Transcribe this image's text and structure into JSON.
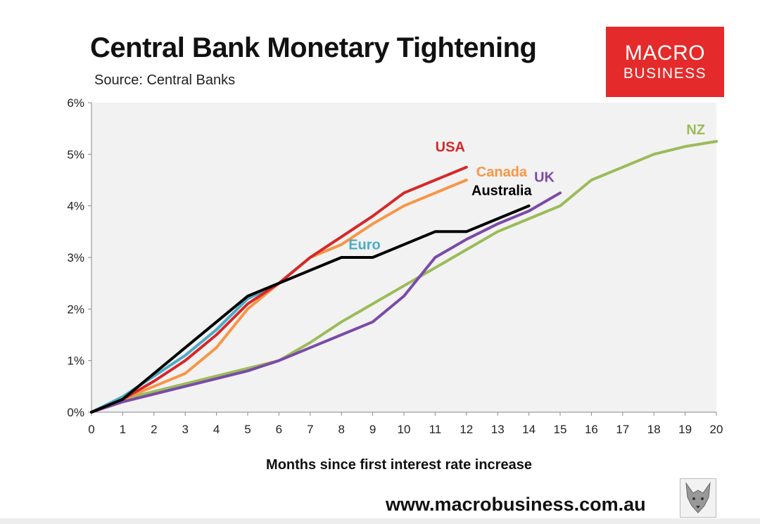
{
  "header": {
    "title": "Central Bank Monetary Tightening",
    "subtitle": "Source: Central Banks"
  },
  "logo": {
    "line1": "MACRO",
    "line2": "BUSINESS",
    "color": "#e42a2a"
  },
  "footer": {
    "website": "www.macrobusiness.com.au",
    "icon": "wolf-icon"
  },
  "chart_data": {
    "type": "line",
    "title": "Central Bank Monetary Tightening",
    "xlabel": "Months since first interest rate increase",
    "ylabel": "",
    "xlim": [
      0,
      20
    ],
    "ylim": [
      0,
      6
    ],
    "grid": false,
    "x_ticks": [
      "0",
      "1",
      "2",
      "3",
      "4",
      "5",
      "6",
      "7",
      "8",
      "9",
      "10",
      "11",
      "12",
      "13",
      "14",
      "15",
      "16",
      "17",
      "18",
      "19",
      "20"
    ],
    "y_ticks": [
      "0%",
      "1%",
      "2%",
      "3%",
      "4%",
      "5%",
      "6%"
    ],
    "series": [
      {
        "name": "NZ",
        "color": "#9bbb59",
        "x": [
          0,
          1,
          2,
          3,
          4,
          5,
          6,
          7,
          8,
          9,
          10,
          11,
          12,
          13,
          14,
          15,
          16,
          17,
          18,
          19,
          20
        ],
        "y": [
          0,
          0.25,
          0.4,
          0.55,
          0.7,
          0.85,
          1.0,
          1.35,
          1.75,
          2.1,
          2.45,
          2.8,
          3.15,
          3.5,
          3.75,
          4.0,
          4.5,
          4.75,
          5.0,
          5.15,
          5.25
        ]
      },
      {
        "name": "UK",
        "color": "#7a4aa8",
        "x": [
          0,
          1,
          2,
          3,
          4,
          5,
          6,
          7,
          8,
          9,
          10,
          11,
          12,
          13,
          14,
          15
        ],
        "y": [
          0,
          0.2,
          0.35,
          0.5,
          0.65,
          0.8,
          1.0,
          1.25,
          1.5,
          1.75,
          2.25,
          3.0,
          3.35,
          3.65,
          3.9,
          4.25
        ]
      },
      {
        "name": "Euro",
        "color": "#4bacc6",
        "x": [
          0,
          1,
          2,
          3,
          4,
          5,
          6,
          7,
          8
        ],
        "y": [
          0,
          0.3,
          0.7,
          1.1,
          1.6,
          2.2,
          2.5,
          3.0,
          3.25
        ]
      },
      {
        "name": "Canada",
        "color": "#f79646",
        "x": [
          0,
          1,
          2,
          3,
          4,
          5,
          6,
          7,
          8,
          9,
          10,
          11,
          12
        ],
        "y": [
          0,
          0.25,
          0.5,
          0.75,
          1.25,
          2.0,
          2.5,
          3.0,
          3.25,
          3.65,
          4.0,
          4.25,
          4.5
        ]
      },
      {
        "name": "USA",
        "color": "#d62728",
        "x": [
          0,
          1,
          2,
          3,
          4,
          5,
          6,
          7,
          8,
          9,
          10,
          11,
          12
        ],
        "y": [
          0,
          0.25,
          0.6,
          1.0,
          1.5,
          2.1,
          2.5,
          3.0,
          3.4,
          3.8,
          4.25,
          4.5,
          4.75
        ]
      },
      {
        "name": "Australia",
        "color": "#000000",
        "x": [
          0,
          1,
          2,
          3,
          4,
          5,
          6,
          7,
          8,
          9,
          10,
          11,
          12,
          13,
          14
        ],
        "y": [
          0,
          0.25,
          0.75,
          1.25,
          1.75,
          2.25,
          2.5,
          2.75,
          3.0,
          3.0,
          3.25,
          3.5,
          3.5,
          3.75,
          4.0
        ]
      }
    ],
    "annotations": [
      {
        "text": "NZ",
        "series": "NZ",
        "x": 20,
        "y": 5.25
      },
      {
        "text": "UK",
        "series": "UK",
        "x": 15,
        "y": 4.25
      },
      {
        "text": "Euro",
        "series": "Euro",
        "x": 8,
        "y": 3.25
      },
      {
        "text": "Canada",
        "series": "Canada",
        "x": 12,
        "y": 4.5
      },
      {
        "text": "USA",
        "series": "USA",
        "x": 12,
        "y": 4.75
      },
      {
        "text": "Australia",
        "series": "Australia",
        "x": 14,
        "y": 4.0
      }
    ]
  }
}
